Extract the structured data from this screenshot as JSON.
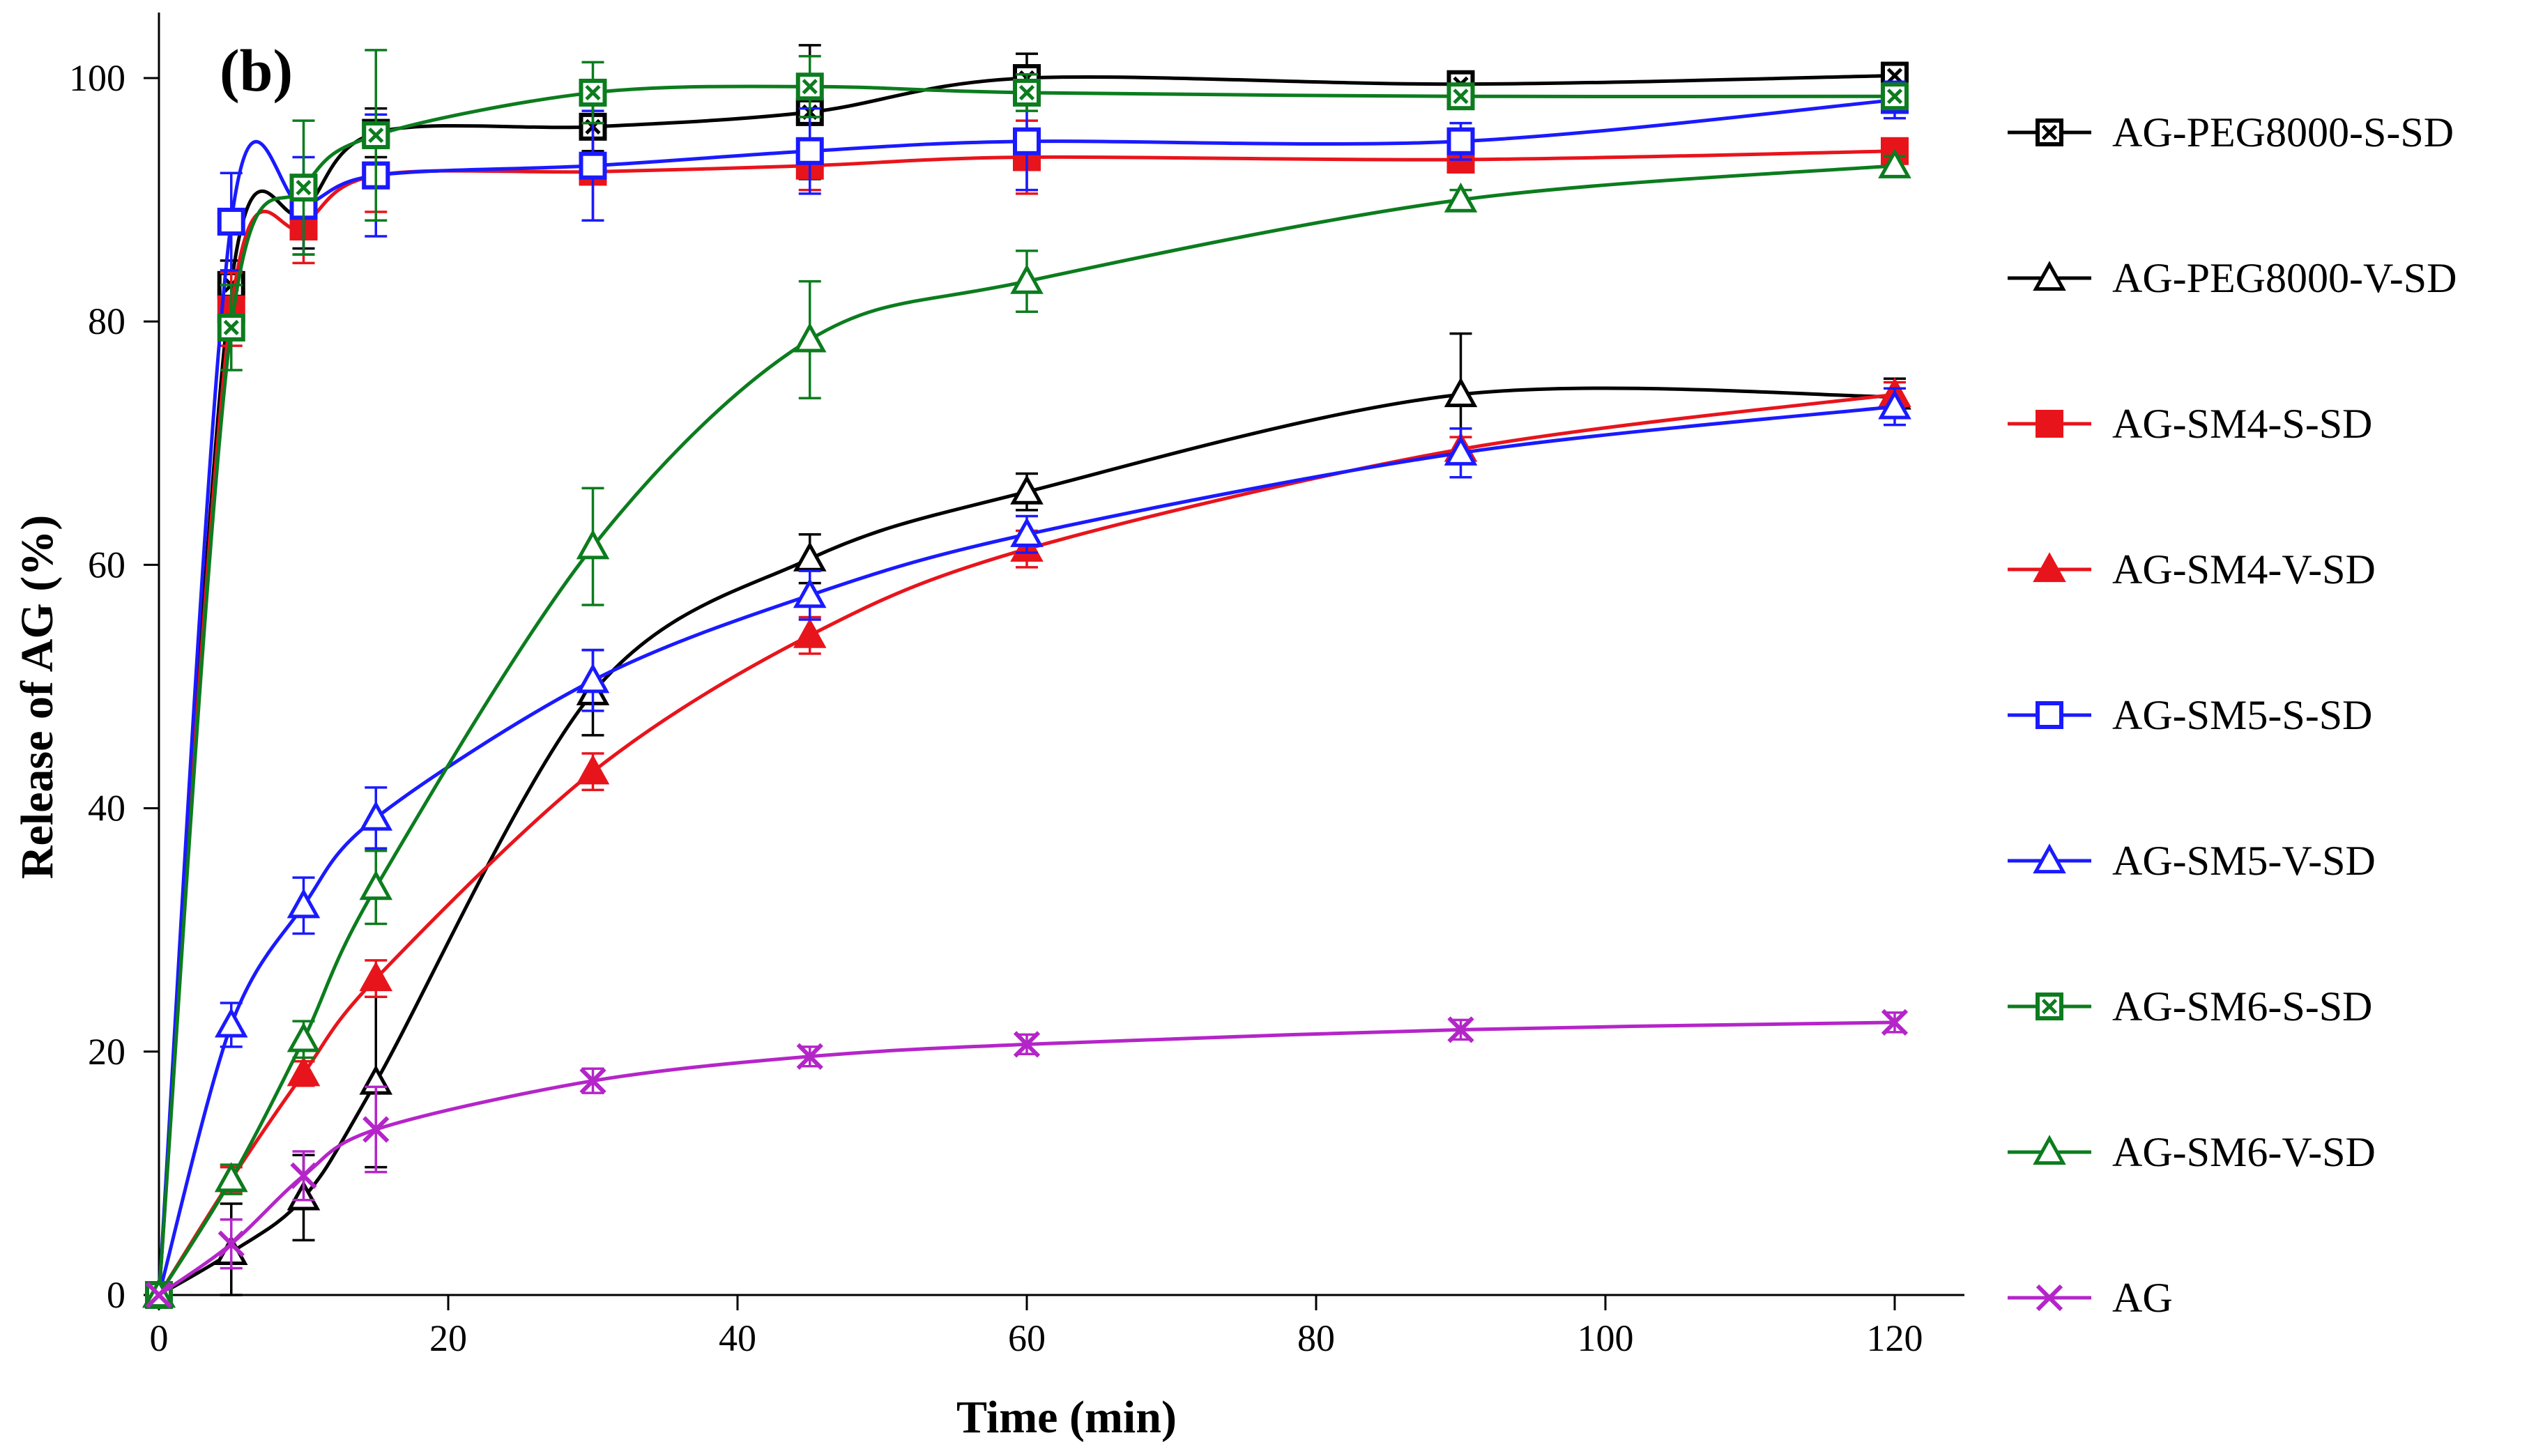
{
  "chart_data": {
    "type": "line",
    "panel_label": "(b)",
    "title": "",
    "xlabel": "Time (min)",
    "ylabel": "Release of AG (%)",
    "xlim": [
      0,
      120
    ],
    "ylim": [
      0,
      100
    ],
    "xticks": [
      0,
      20,
      40,
      60,
      80,
      100,
      120
    ],
    "yticks": [
      0,
      20,
      40,
      60,
      80,
      100
    ],
    "grid": false,
    "legend_position": "right",
    "x": [
      0,
      5,
      10,
      15,
      30,
      45,
      60,
      90,
      120
    ],
    "series": [
      {
        "name": "AG-PEG8000-S-SD",
        "color": "#000000",
        "marker": "square-x",
        "values": [
          0,
          83,
          89,
          95.5,
          96,
          97.2,
          100,
          99.5,
          100.2
        ],
        "errors": [
          0,
          2,
          3,
          2,
          2,
          5.5,
          2,
          1,
          1
        ]
      },
      {
        "name": "AG-PEG8000-V-SD",
        "color": "#000000",
        "marker": "triangle-open",
        "values": [
          0,
          3.5,
          8,
          17.5,
          49.5,
          60.5,
          66,
          74,
          73.8
        ],
        "errors": [
          0,
          4,
          3.5,
          7,
          3.5,
          2,
          1.5,
          5,
          1.5
        ]
      },
      {
        "name": "AG-SM4-S-SD",
        "color": "#e8141c",
        "marker": "square-filled",
        "values": [
          0,
          81,
          87.8,
          92,
          92.3,
          92.8,
          93.5,
          93.3,
          94
        ],
        "errors": [
          0,
          3,
          3,
          3,
          4,
          2,
          3,
          1,
          1
        ]
      },
      {
        "name": "AG-SM4-V-SD",
        "color": "#e8141c",
        "marker": "triangle-filled",
        "values": [
          0,
          9.5,
          18.2,
          26,
          43,
          54.2,
          61.3,
          69.5,
          74
        ],
        "errors": [
          0,
          1,
          1,
          1.5,
          1.5,
          1.5,
          1.5,
          1,
          1
        ]
      },
      {
        "name": "AG-SM5-S-SD",
        "color": "#1a1aff",
        "marker": "square-open",
        "values": [
          0,
          88.2,
          89.5,
          92,
          92.8,
          94,
          94.8,
          94.8,
          98.2
        ],
        "errors": [
          0,
          4,
          4,
          5,
          4.5,
          3.5,
          4,
          1.5,
          1.5
        ]
      },
      {
        "name": "AG-SM5-V-SD",
        "color": "#1a1aff",
        "marker": "triangle-open",
        "values": [
          0,
          22.2,
          32,
          39.2,
          50.5,
          57.5,
          62.5,
          69.2,
          73
        ],
        "errors": [
          0,
          1.8,
          2.3,
          2.5,
          2.5,
          2,
          1.5,
          2,
          1.5
        ]
      },
      {
        "name": "AG-SM6-S-SD",
        "color": "#0c7c1e",
        "marker": "square-x",
        "values": [
          0,
          79.5,
          91,
          95.3,
          98.8,
          99.3,
          98.8,
          98.5,
          98.5
        ],
        "errors": [
          0,
          3.5,
          5.5,
          7,
          2.5,
          2.5,
          1.5,
          1,
          1
        ]
      },
      {
        "name": "AG-SM6-V-SD",
        "color": "#0c7c1e",
        "marker": "triangle-open",
        "values": [
          0,
          9.5,
          21,
          33.5,
          61.5,
          78.5,
          83.3,
          90,
          92.8
        ],
        "errors": [
          0,
          1.2,
          1.5,
          3,
          4.8,
          4.8,
          2.5,
          0.8,
          0.8
        ]
      },
      {
        "name": "AG",
        "color": "#b425c8",
        "marker": "x",
        "values": [
          0,
          4.2,
          9.8,
          13.6,
          17.6,
          19.6,
          20.6,
          21.8,
          22.4
        ],
        "errors": [
          0,
          2,
          2,
          3.5,
          1,
          0.8,
          0.8,
          0.8,
          0.8
        ]
      }
    ]
  }
}
